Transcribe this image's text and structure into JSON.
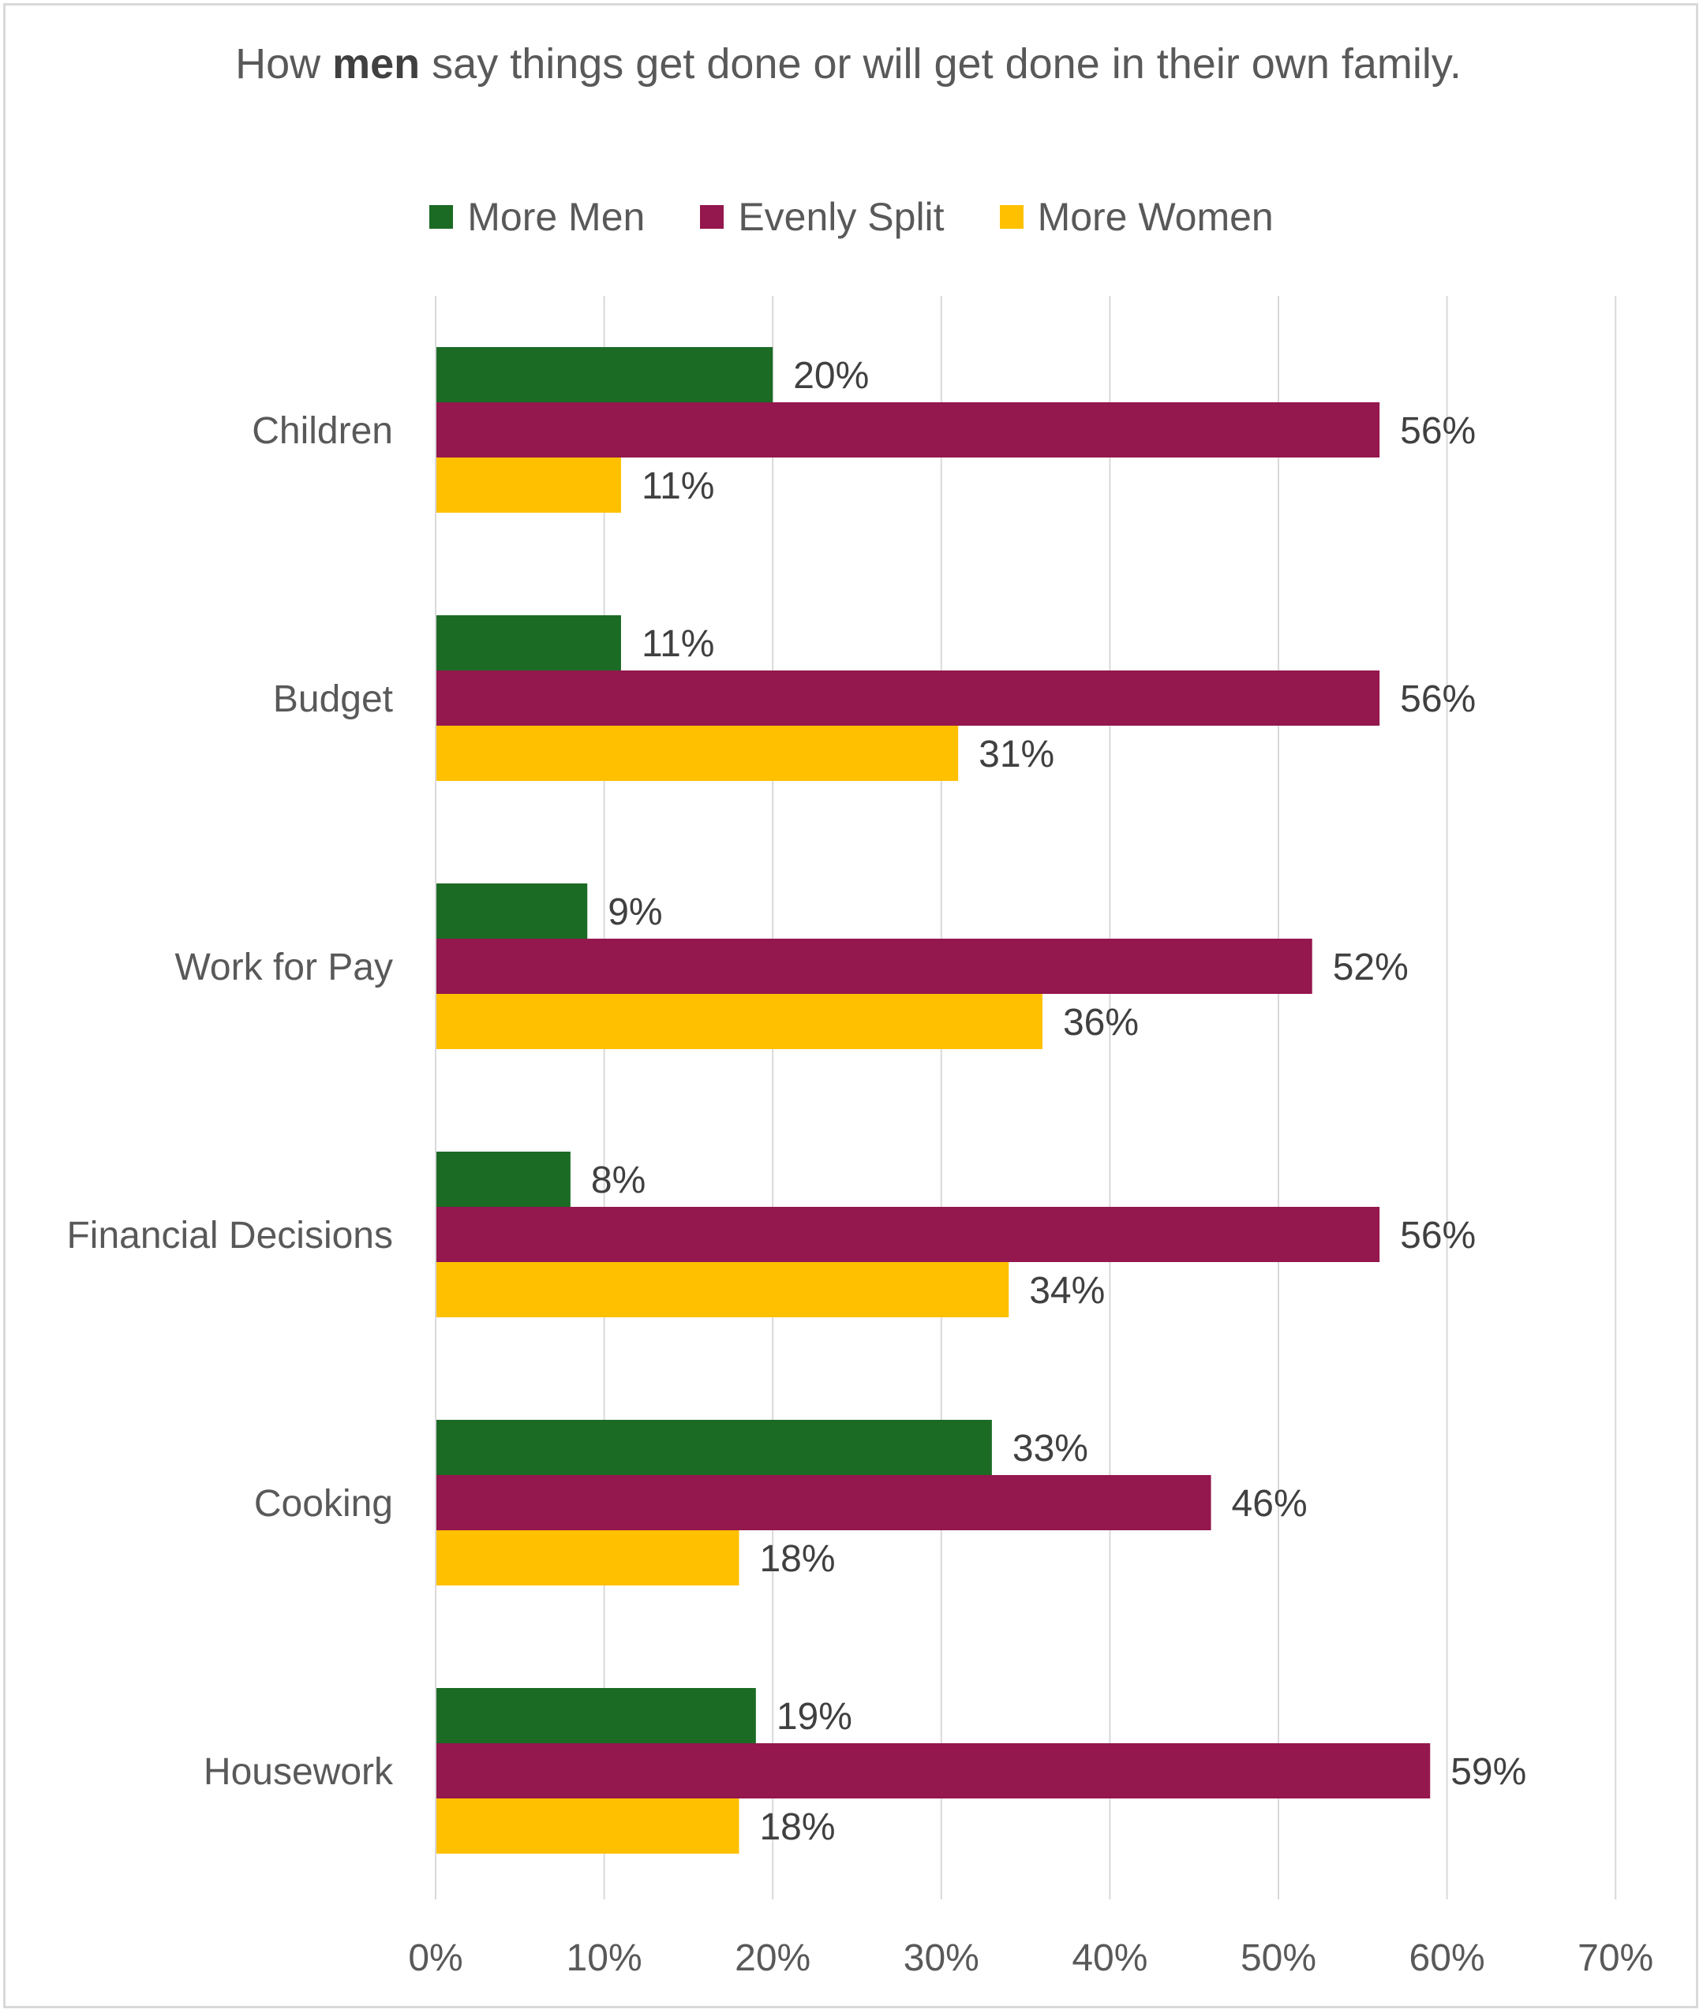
{
  "chart_data": {
    "type": "bar",
    "orientation": "horizontal",
    "title_parts": [
      "How ",
      "men",
      " say things get done or will get done in their own family."
    ],
    "title": "How men say things get done or will get done in their own family.",
    "categories": [
      "Children",
      "Budget",
      "Work for Pay",
      "Financial Decisions",
      "Cooking",
      "Housework"
    ],
    "series": [
      {
        "name": "More Men",
        "color": "#1b6b25",
        "values": [
          20,
          11,
          9,
          8,
          33,
          19
        ]
      },
      {
        "name": "Evenly Split",
        "color": "#94174d",
        "values": [
          56,
          56,
          52,
          56,
          46,
          59
        ]
      },
      {
        "name": "More Women",
        "color": "#ffc000",
        "values": [
          11,
          31,
          36,
          34,
          18,
          18
        ]
      }
    ],
    "xlim": [
      0,
      70
    ],
    "xticks": [
      0,
      10,
      20,
      30,
      40,
      50,
      60,
      70
    ],
    "tick_suffix": "%",
    "value_suffix": "%",
    "grid": true,
    "legend_position": "top"
  }
}
